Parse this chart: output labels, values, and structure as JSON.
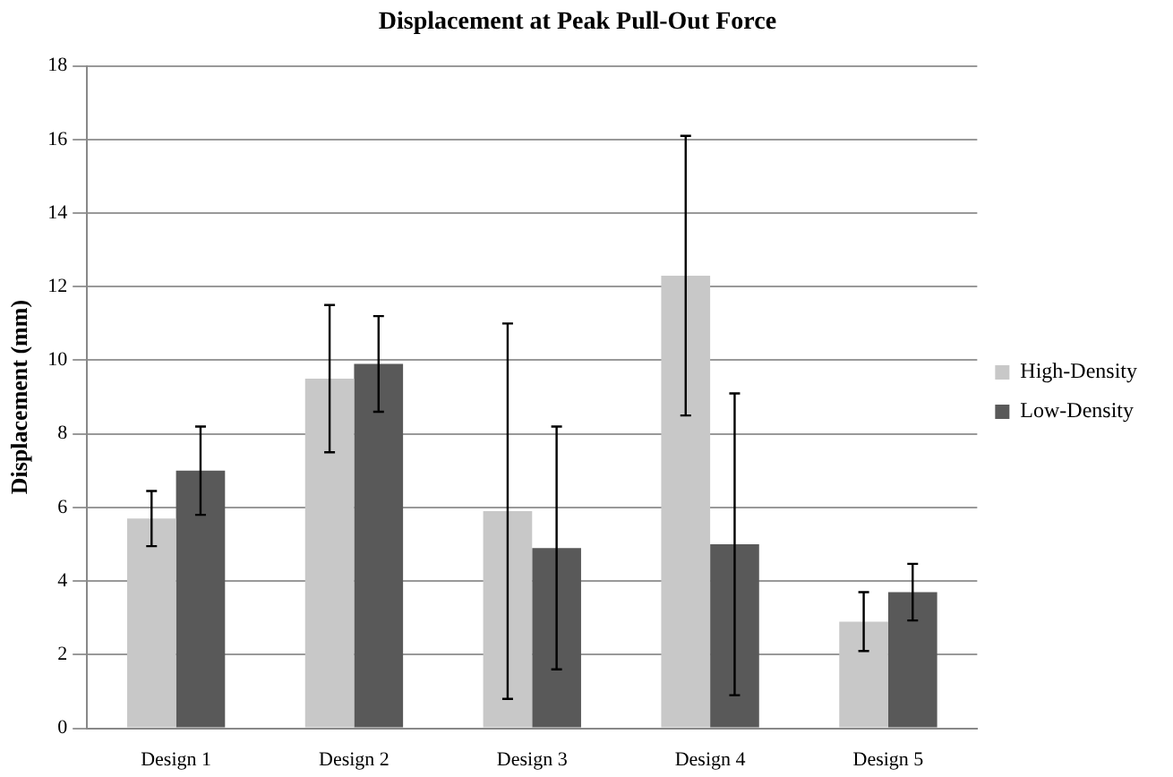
{
  "chart_data": {
    "type": "bar",
    "title": "Displacement at Peak Pull-Out Force",
    "ylabel": "Displacement (mm)",
    "categories": [
      "Design 1",
      "Design 2",
      "Design 3",
      "Design 4",
      "Design 5"
    ],
    "series": [
      {
        "name": "High-Density",
        "color": "#c8c8c8",
        "values": [
          5.7,
          9.5,
          5.9,
          12.3,
          2.9
        ],
        "errors": [
          0.75,
          2.0,
          5.1,
          3.8,
          0.8
        ]
      },
      {
        "name": "Low-Density",
        "color": "#595959",
        "values": [
          7.0,
          9.9,
          4.9,
          5.0,
          3.7
        ],
        "errors": [
          1.2,
          1.3,
          3.3,
          4.1,
          0.77
        ]
      }
    ],
    "ylim": [
      0,
      18
    ],
    "yticks": [
      0,
      2,
      4,
      6,
      8,
      10,
      12,
      14,
      16,
      18
    ],
    "grid": "y",
    "legend": "right"
  }
}
